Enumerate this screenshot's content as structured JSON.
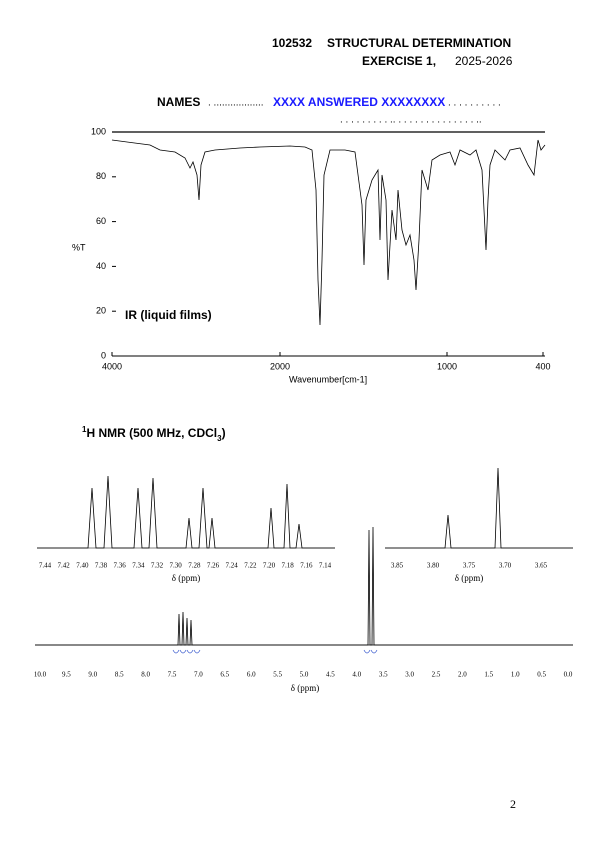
{
  "header": {
    "course_code": "102532",
    "course_title": "STRUCTURAL DETERMINATION",
    "exercise": "EXERCISE 1,",
    "year": "2025-2026"
  },
  "names": {
    "label": "NAMES",
    "dots_before": ". ..................",
    "answer": "XXXX ANSWERED XXXXXXXX",
    "dots_after": ". . . . . . . . . .",
    "dots_line2": ". . . . . . . . . .. . . . . . . . . . . . . . . .."
  },
  "ir": {
    "y_axis_label": "%T",
    "y_ticks": [
      "100",
      "80",
      "60",
      "40",
      "20",
      "0"
    ],
    "x_ticks": [
      "4000",
      "2000",
      "1000",
      "400"
    ],
    "x_axis_label": "Wavenumber[cm-1]",
    "sample_label": "IR (liquid films)"
  },
  "nmr": {
    "title_sup": "1",
    "title_main": "H NMR (500 MHz, CDCl",
    "title_sub": "3",
    "title_end": ")",
    "inset_aromatic_ticks": [
      "7.44",
      "7.42",
      "7.40",
      "7.38",
      "7.36",
      "7.34",
      "7.32",
      "7.30",
      "7.28",
      "7.26",
      "7.24",
      "7.22",
      "7.20",
      "7.18",
      "7.16",
      "7.14"
    ],
    "inset_aliphatic_ticks": [
      "3.85",
      "3.80",
      "3.75",
      "3.70",
      "3.65"
    ],
    "axis_label": "δ (ppm)",
    "main_ticks": [
      "10.0",
      "9.5",
      "9.0",
      "8.5",
      "8.0",
      "7.5",
      "7.0",
      "6.5",
      "6.0",
      "5.5",
      "5.0",
      "4.5",
      "4.0",
      "3.5",
      "3.0",
      "2.5",
      "2.0",
      "1.5",
      "1.0",
      "0.5",
      "0.0"
    ]
  },
  "footer": {
    "page_number": "2"
  }
}
